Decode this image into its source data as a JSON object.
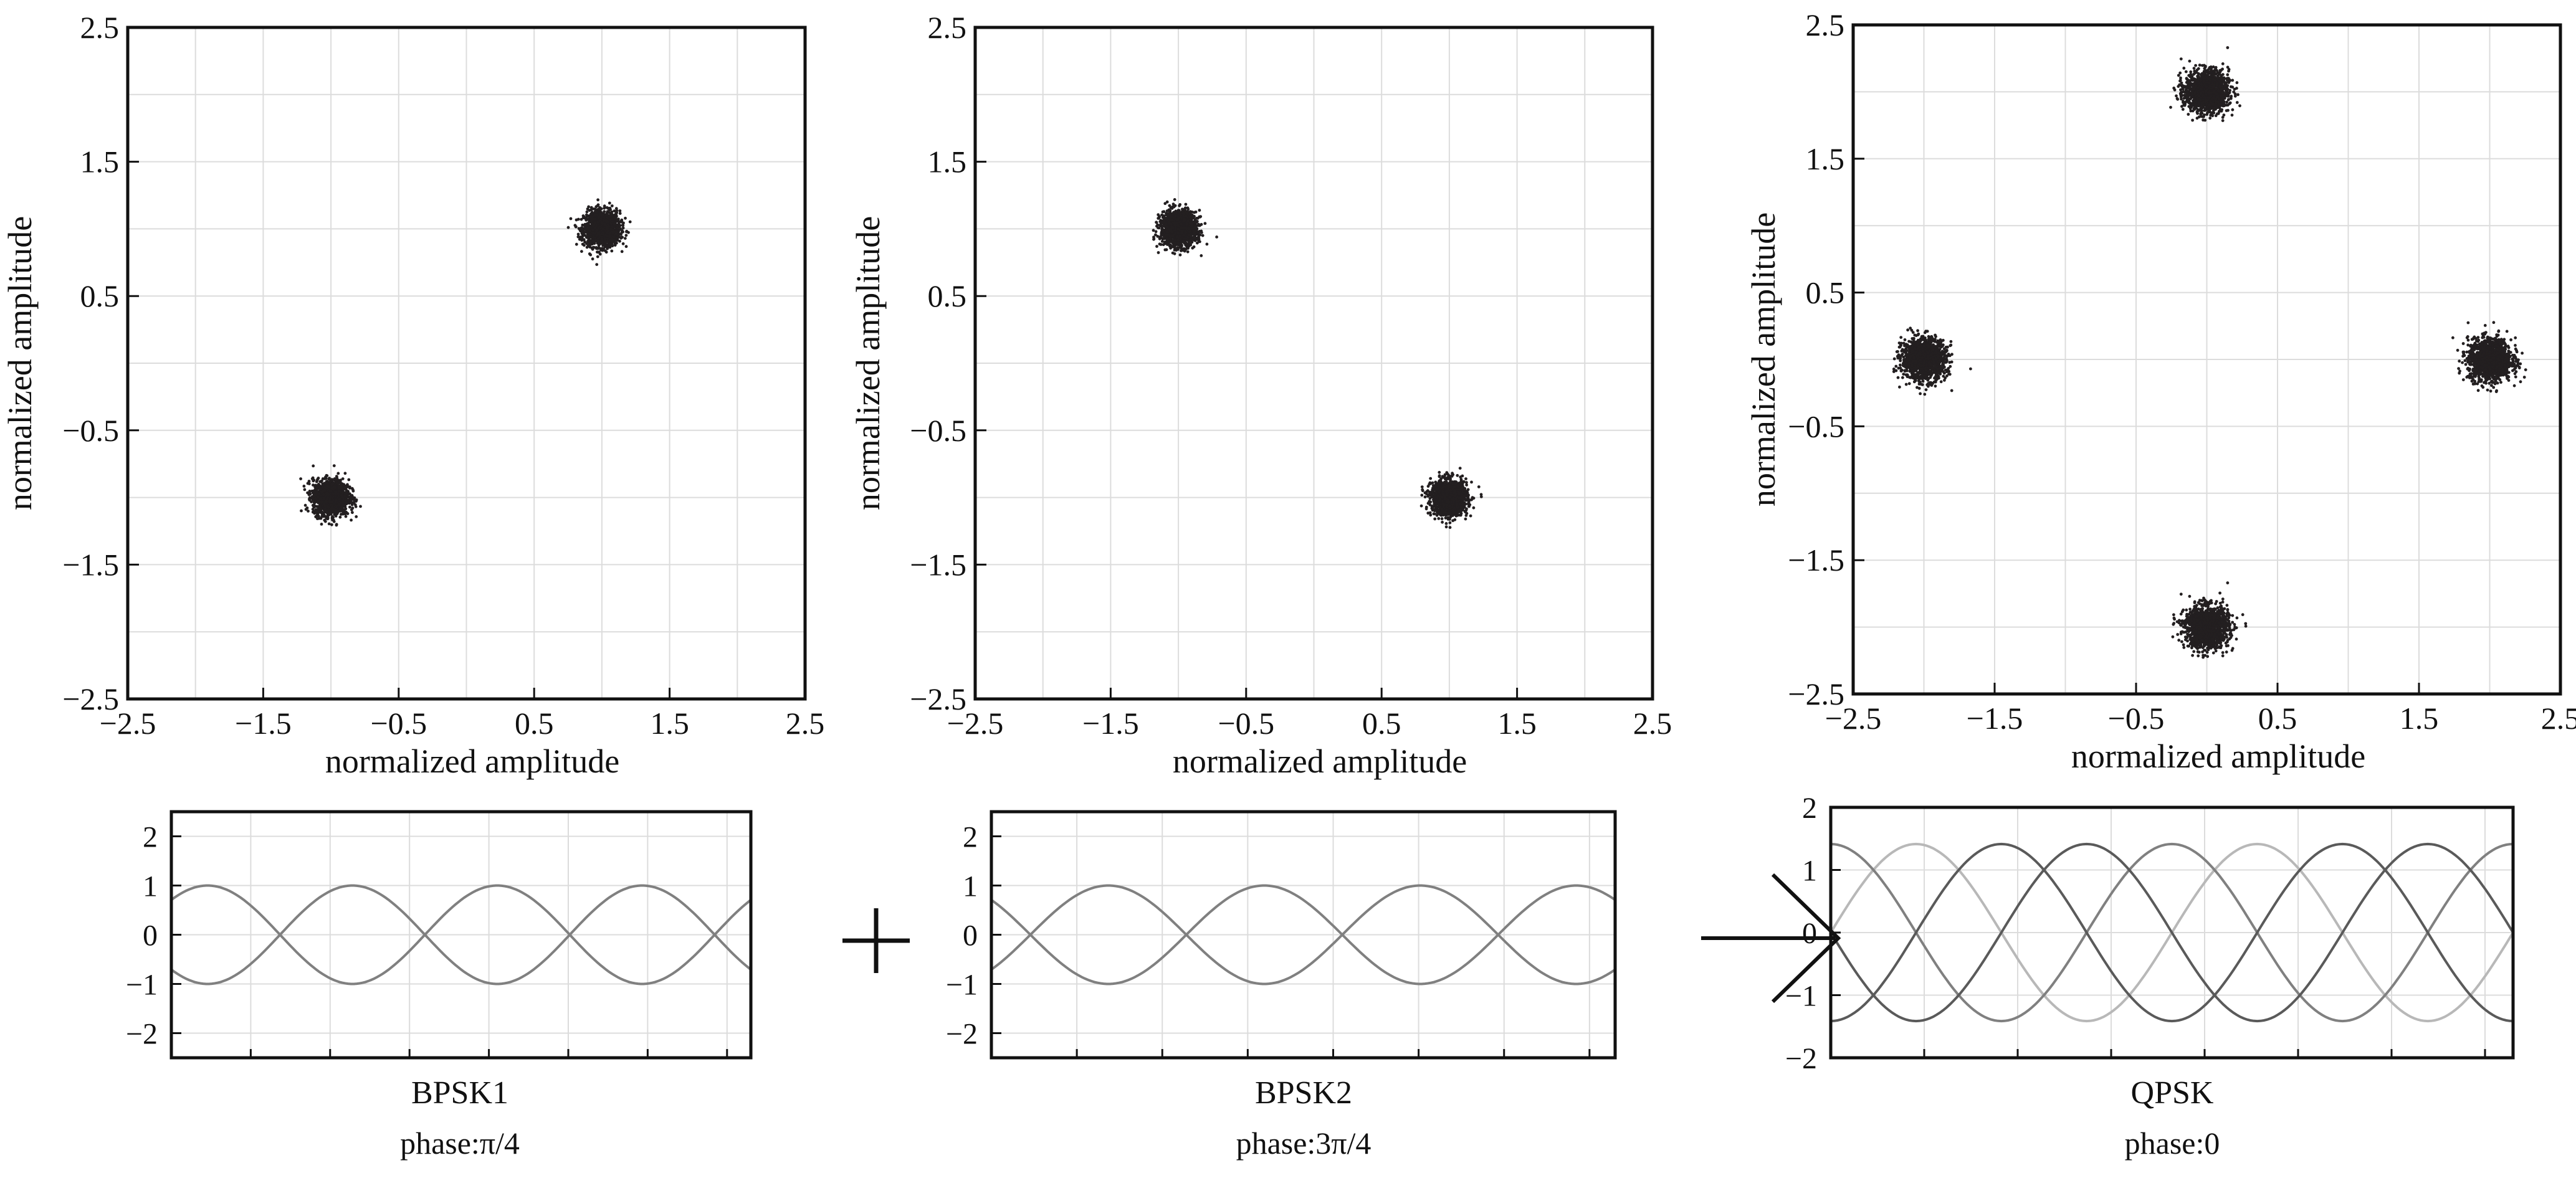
{
  "colors": {
    "axis": "#111111",
    "grid": "#dcdcdc",
    "point": "#231f20",
    "wave_mid": "#808080",
    "wave_dark": "#5a5a5a",
    "wave_light": "#b8b8b8"
  },
  "symbols": {
    "plus": "+",
    "arrow": "→"
  },
  "chart_data": [
    {
      "id": "constellation-bpsk1",
      "type": "scatter",
      "xlabel": "normalized amplitude",
      "ylabel": "normalized amplitude",
      "xlim": [
        -2.5,
        2.5
      ],
      "ylim": [
        -2.5,
        2.5
      ],
      "xticks": [
        -2.5,
        -1.5,
        -0.5,
        0.5,
        1.5,
        2.5
      ],
      "yticks": [
        -2.5,
        -1.5,
        -0.5,
        0.5,
        1.5,
        2.5
      ],
      "tick_labels": [
        "−2.5",
        "−1.5",
        "−0.5",
        "0.5",
        "1.5",
        "2.5"
      ],
      "grid": true,
      "clusters": [
        {
          "x": 1,
          "y": 1,
          "spread": 0.12
        },
        {
          "x": -1,
          "y": -1,
          "spread": 0.12
        }
      ]
    },
    {
      "id": "constellation-bpsk2",
      "type": "scatter",
      "xlabel": "normalized amplitude",
      "ylabel": "normalized amplitude",
      "xlim": [
        -2.5,
        2.5
      ],
      "ylim": [
        -2.5,
        2.5
      ],
      "xticks": [
        -2.5,
        -1.5,
        -0.5,
        0.5,
        1.5,
        2.5
      ],
      "yticks": [
        -2.5,
        -1.5,
        -0.5,
        0.5,
        1.5,
        2.5
      ],
      "tick_labels": [
        "−2.5",
        "−1.5",
        "−0.5",
        "0.5",
        "1.5",
        "2.5"
      ],
      "grid": true,
      "clusters": [
        {
          "x": -1,
          "y": 1,
          "spread": 0.12
        },
        {
          "x": 1,
          "y": -1,
          "spread": 0.12
        }
      ]
    },
    {
      "id": "constellation-qpsk",
      "type": "scatter",
      "xlabel": "normalized amplitude",
      "ylabel": "normalized amplitude",
      "xlim": [
        -2.5,
        2.5
      ],
      "ylim": [
        -2.5,
        2.5
      ],
      "xticks": [
        -2.5,
        -1.5,
        -0.5,
        0.5,
        1.5,
        2.5
      ],
      "yticks": [
        -2.5,
        -1.5,
        -0.5,
        0.5,
        1.5,
        2.5
      ],
      "tick_labels": [
        "−2.5",
        "−1.5",
        "−0.5",
        "0.5",
        "1.5",
        "2.5"
      ],
      "grid": true,
      "clusters": [
        {
          "x": 0,
          "y": 2,
          "spread": 0.14
        },
        {
          "x": 2,
          "y": 0,
          "spread": 0.14
        },
        {
          "x": -2,
          "y": 0,
          "spread": 0.14
        },
        {
          "x": 0,
          "y": -2,
          "spread": 0.14
        }
      ]
    },
    {
      "id": "wave-bpsk1",
      "type": "line",
      "xlabel": "BPSK1",
      "subtitle": "phase:π/4",
      "ylim": [
        -2.5,
        2.5
      ],
      "yticks": [
        -2,
        -1,
        0,
        1,
        2
      ],
      "ytick_labels": [
        "−2",
        "−1",
        "0",
        "1",
        "2"
      ],
      "grid": true,
      "x_periods": 2,
      "series": [
        {
          "amplitude": 1,
          "phase_rad": 0.785398,
          "shade": "mid"
        },
        {
          "amplitude": 1,
          "phase_rad": 3.926991,
          "shade": "mid"
        }
      ]
    },
    {
      "id": "wave-bpsk2",
      "type": "line",
      "xlabel": "BPSK2",
      "subtitle": "phase:3π/4",
      "ylim": [
        -2.5,
        2.5
      ],
      "yticks": [
        -2,
        -1,
        0,
        1,
        2
      ],
      "ytick_labels": [
        "−2",
        "−1",
        "0",
        "1",
        "2"
      ],
      "grid": true,
      "x_periods": 2,
      "series": [
        {
          "amplitude": 1,
          "phase_rad": 2.356194,
          "shade": "mid"
        },
        {
          "amplitude": 1,
          "phase_rad": 5.497787,
          "shade": "mid"
        }
      ]
    },
    {
      "id": "wave-qpsk",
      "type": "line",
      "xlabel": "QPSK",
      "subtitle": "phase:0",
      "ylim": [
        -2,
        2
      ],
      "yticks": [
        -2,
        -1,
        0,
        1,
        2
      ],
      "ytick_labels": [
        "−2",
        "−1",
        "0",
        "1",
        "2"
      ],
      "grid": true,
      "x_periods": 2,
      "series": [
        {
          "amplitude": 1.414,
          "phase_rad": 0,
          "shade": "light"
        },
        {
          "amplitude": 1.414,
          "phase_rad": 1.570796,
          "shade": "mid"
        },
        {
          "amplitude": 1.414,
          "phase_rad": 3.141593,
          "shade": "dark"
        },
        {
          "amplitude": 1.414,
          "phase_rad": 4.712389,
          "shade": "dark"
        }
      ]
    }
  ]
}
